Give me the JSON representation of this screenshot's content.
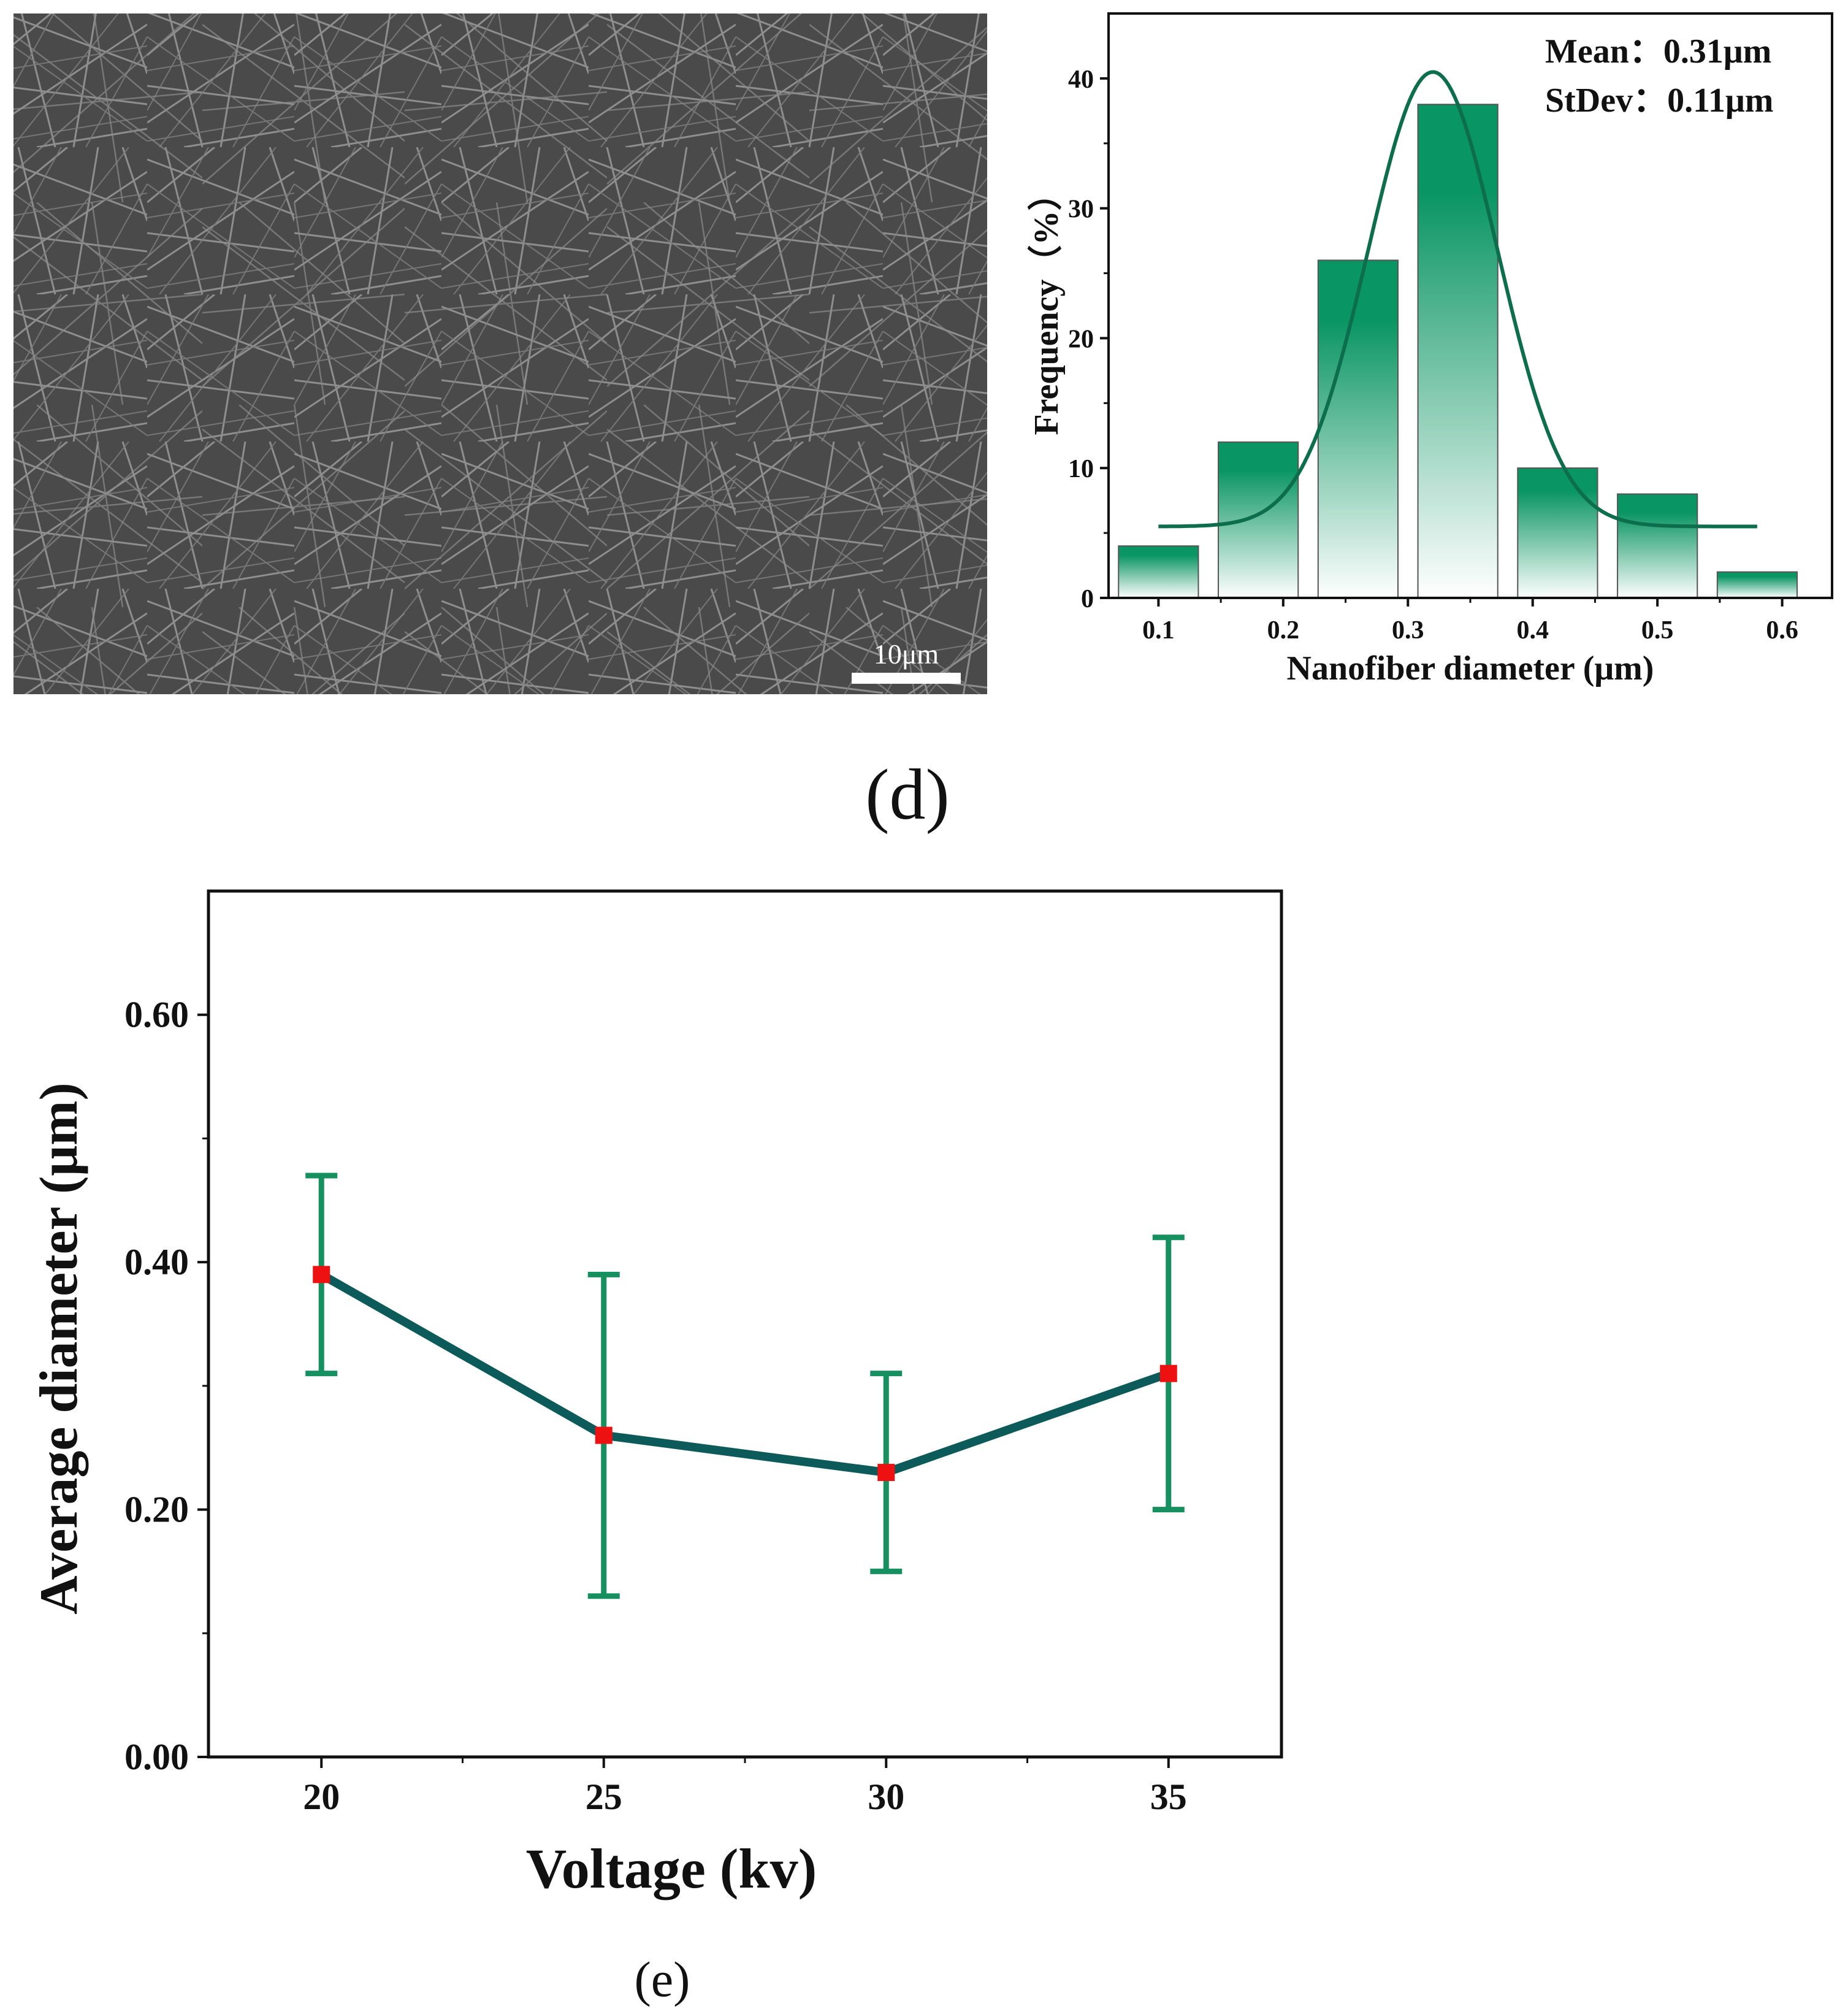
{
  "sem_image": {
    "scale_bar_label": "10μm"
  },
  "colors": {
    "bar_green": "#0a9564",
    "fit_curve": "#0d6e4e",
    "line_teal": "#0d5a5a",
    "error_green": "#16905f",
    "marker_red": "#ee1111",
    "axis": "#111111"
  },
  "panel_d": {
    "caption": "(d)"
  },
  "panel_e": {
    "caption": "(e)"
  },
  "chart_data": [
    {
      "id": "histogram",
      "type": "bar",
      "title": "",
      "xlabel": "Nanofiber diameter (μm)",
      "ylabel": "Frequency（%）",
      "x_ticks": [
        "0.1",
        "0.2",
        "0.3",
        "0.4",
        "0.5",
        "0.6"
      ],
      "y_ticks": [
        "0",
        "10",
        "20",
        "30",
        "40"
      ],
      "xlim": [
        0.06,
        0.64
      ],
      "ylim": [
        0,
        45
      ],
      "bins": [
        {
          "center": 0.1,
          "value": 4
        },
        {
          "center": 0.18,
          "value": 12
        },
        {
          "center": 0.26,
          "value": 26
        },
        {
          "center": 0.34,
          "value": 38
        },
        {
          "center": 0.42,
          "value": 10
        },
        {
          "center": 0.5,
          "value": 8
        },
        {
          "center": 0.58,
          "value": 2
        }
      ],
      "bin_width": 0.064,
      "fit": {
        "type": "gaussian",
        "mean": 0.32,
        "sigma": 0.052,
        "amplitude": 35,
        "offset": 5.5,
        "x_range": [
          0.1,
          0.58
        ]
      },
      "annotations": [
        "Mean：0.31μm",
        "StDev：0.11μm"
      ],
      "legend": "none"
    },
    {
      "id": "voltage",
      "type": "line",
      "title": "",
      "xlabel": "Voltage (kv)",
      "ylabel": "Average diameter (μm)",
      "x": [
        20,
        25,
        30,
        35
      ],
      "x_ticks": [
        "20",
        "25",
        "30",
        "35"
      ],
      "y_ticks": [
        "0.00",
        "0.20",
        "0.40",
        "0.60"
      ],
      "xlim": [
        18,
        37
      ],
      "ylim": [
        0,
        0.7
      ],
      "series": [
        {
          "name": "Average diameter",
          "values": [
            0.39,
            0.26,
            0.23,
            0.31
          ],
          "error_low": [
            0.31,
            0.13,
            0.15,
            0.2
          ],
          "error_high": [
            0.47,
            0.39,
            0.31,
            0.42
          ]
        }
      ],
      "legend": "none"
    }
  ]
}
